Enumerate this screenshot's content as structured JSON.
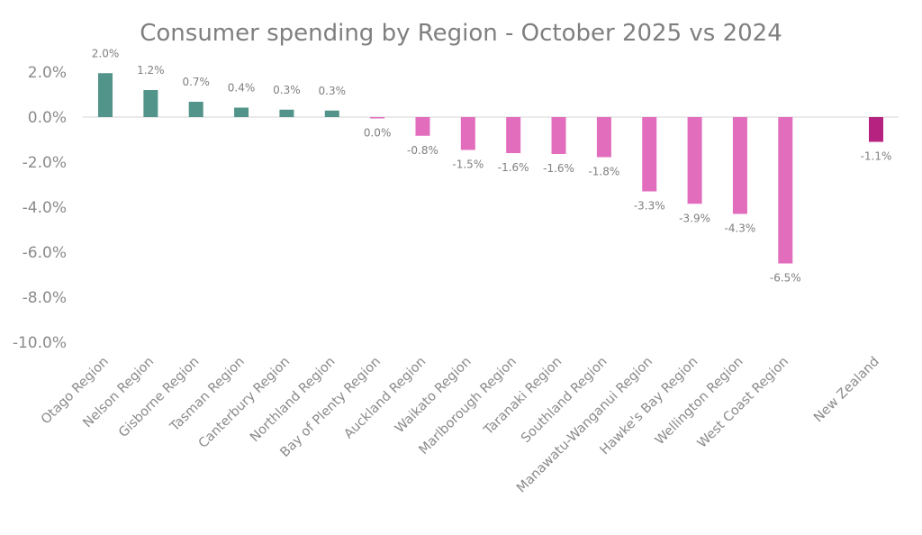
{
  "chart_data": {
    "type": "bar",
    "title": "Consumer spending by Region - October 2025 vs 2024",
    "xlabel": "",
    "ylabel": "",
    "ylim": [
      -10,
      2
    ],
    "yticks": [
      2,
      0,
      -2,
      -4,
      -6,
      -8,
      -10
    ],
    "ytick_labels": [
      "2.0%",
      "0.0%",
      "-2.0%",
      "-4.0%",
      "-6.0%",
      "-8.0%",
      "-10.0%"
    ],
    "grid": false,
    "legend": "none",
    "categories": [
      "Otago Region",
      "Nelson Region",
      "Gisborne Region",
      "Tasman Region",
      "Canterbury Region",
      "Northland Region",
      "Bay of Plenty Region",
      "Auckland Region",
      "Waikato Region",
      "Marlborough Region",
      "Taranaki Region",
      "Southland Region",
      "Manawatu-Wanganui Region",
      "Hawke's Bay Region",
      "Wellington Region",
      "West Coast Region",
      "",
      "New Zealand"
    ],
    "values": [
      1.95,
      1.2,
      0.68,
      0.42,
      0.33,
      0.29,
      -0.04,
      -0.83,
      -1.46,
      -1.6,
      -1.64,
      -1.78,
      -3.3,
      -3.85,
      -4.3,
      -6.5,
      null,
      -1.1
    ],
    "data_labels": [
      "2.0%",
      "1.2%",
      "0.7%",
      "0.4%",
      "0.3%",
      "0.3%",
      "0.0%",
      "-0.8%",
      "-1.5%",
      "-1.6%",
      "-1.6%",
      "-1.8%",
      "-3.3%",
      "-3.9%",
      "-4.3%",
      "-6.5%",
      "",
      "-1.1%"
    ],
    "colors": {
      "positive": "#52948a",
      "negative": "#e26dbd",
      "national": "#b5227f",
      "zero_line": "#e3e3e3"
    }
  }
}
